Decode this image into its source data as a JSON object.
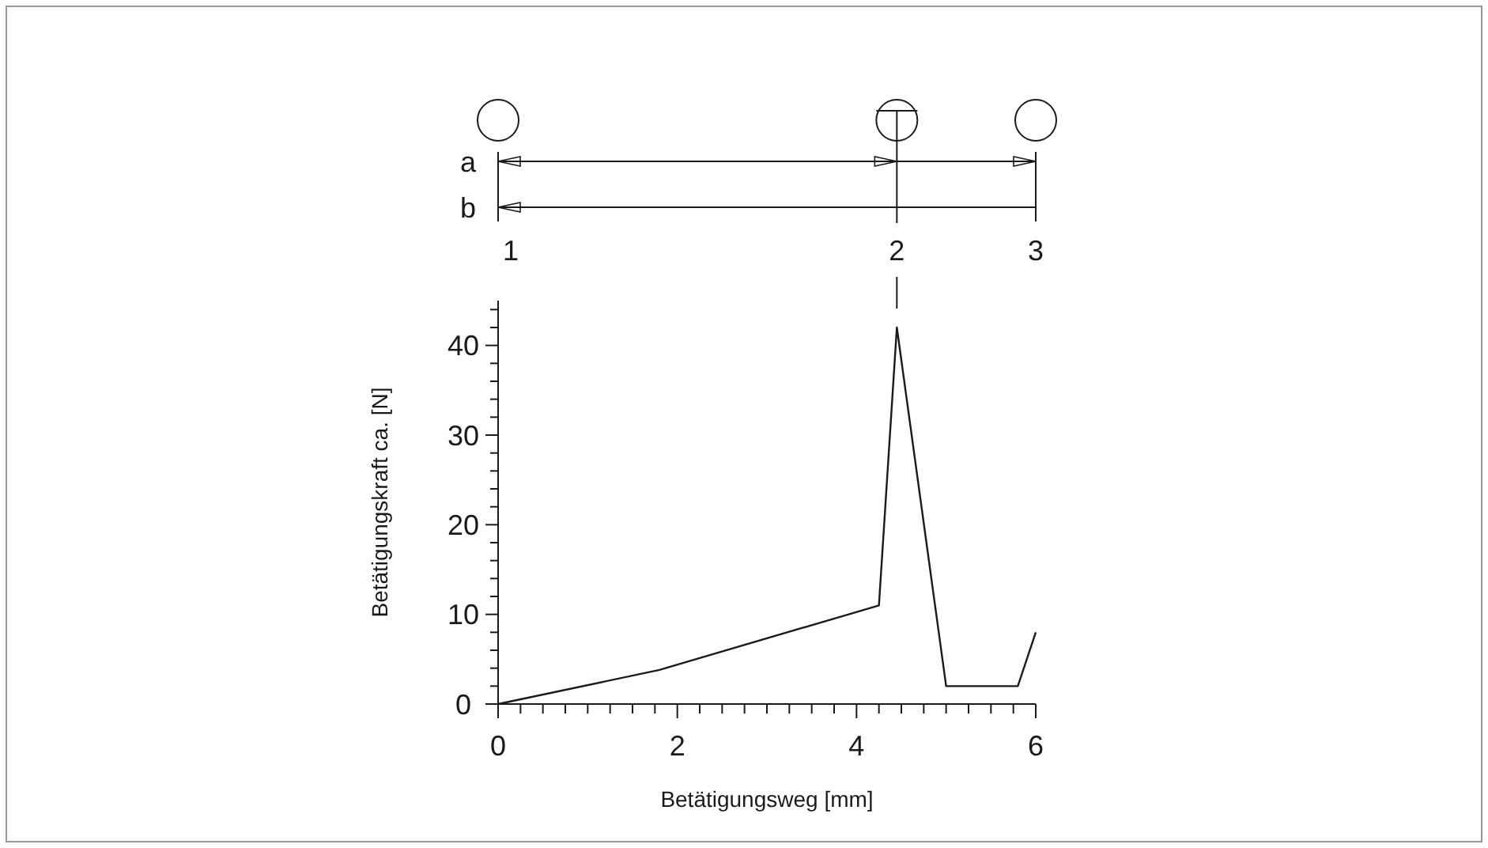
{
  "chart_data": {
    "type": "line",
    "xlabel": "Betätigungsweg [mm]",
    "ylabel": "Betätigungskraft ca. [N]",
    "x": [
      0,
      1.8,
      4.25,
      4.45,
      5.0,
      5.8,
      6
    ],
    "series": [
      {
        "color": "#1a1a1a",
        "values": [
          0,
          3.8,
          11,
          42,
          2,
          2,
          8
        ]
      }
    ],
    "xlim": [
      0,
      6
    ],
    "ylim": [
      0,
      45
    ],
    "xticks": [
      0,
      {
        "value": 0.25,
        "label": null
      },
      {
        "value": 0.5,
        "label": null
      },
      {
        "value": 0.75,
        "label": null
      },
      {
        "value": 1,
        "label": null
      },
      {
        "value": 1.25,
        "label": null
      },
      {
        "value": 1.5,
        "label": null
      },
      {
        "value": 1.75,
        "label": null
      },
      2,
      {
        "value": 2.25,
        "label": null
      },
      {
        "value": 2.5,
        "label": null
      },
      {
        "value": 2.75,
        "label": null
      },
      {
        "value": 3,
        "label": null
      },
      {
        "value": 3.25,
        "label": null
      },
      {
        "value": 3.5,
        "label": null
      },
      {
        "value": 3.75,
        "label": null
      },
      4,
      {
        "value": 4.25,
        "label": null
      },
      {
        "value": 4.5,
        "label": null
      },
      {
        "value": 4.75,
        "label": null
      },
      {
        "value": 5,
        "label": null
      },
      {
        "value": 5.25,
        "label": null
      },
      {
        "value": 5.5,
        "label": null
      },
      {
        "value": 5.75,
        "label": null
      },
      6
    ],
    "yticks": [
      0,
      {
        "value": 2,
        "label": null
      },
      {
        "value": 4,
        "label": null
      },
      {
        "value": 6,
        "label": null
      },
      {
        "value": 8,
        "label": null
      },
      10,
      {
        "value": 12,
        "label": null
      },
      {
        "value": 14,
        "label": null
      },
      {
        "value": 16,
        "label": null
      },
      {
        "value": 18,
        "label": null
      },
      20,
      {
        "value": 22,
        "label": null
      },
      {
        "value": 24,
        "label": null
      },
      {
        "value": 26,
        "label": null
      },
      {
        "value": 28,
        "label": null
      },
      30,
      {
        "value": 32,
        "label": null
      },
      {
        "value": 34,
        "label": null
      },
      {
        "value": 36,
        "label": null
      },
      {
        "value": 38,
        "label": null
      },
      40,
      {
        "value": 42,
        "label": null
      },
      {
        "value": 44,
        "label": null
      }
    ],
    "grid": false,
    "marker": "none",
    "line_style": "solid",
    "annotations": [
      "a",
      "b",
      {
        "text": "1",
        "x": 0
      },
      {
        "text": "2",
        "x": 4.45
      },
      {
        "text": "3",
        "x": 6
      }
    ]
  }
}
